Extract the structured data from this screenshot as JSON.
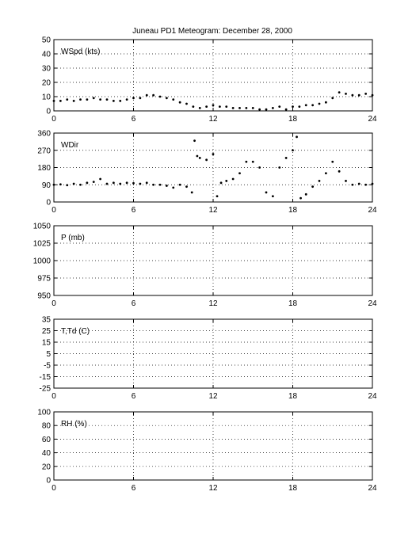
{
  "title": "Juneau PD1 Meteogram:   December 28, 2000",
  "chart_data": [
    {
      "type": "scatter",
      "label": "WSpd (kts)",
      "xlim": [
        0,
        24
      ],
      "ylim": [
        0,
        50
      ],
      "xticks": [
        0,
        6,
        12,
        18,
        24
      ],
      "yticks": [
        0,
        10,
        20,
        30,
        40,
        50
      ],
      "grid": true,
      "series": [
        {
          "x": [
            0,
            0.5,
            1,
            1.5,
            2,
            2.5,
            3,
            3.5,
            4,
            4.5,
            5,
            5.5,
            6,
            6.5,
            7,
            7.5,
            8,
            8.5,
            9,
            9.5,
            10,
            10.5,
            11,
            11.5,
            12,
            12.5,
            13,
            13.5,
            14,
            14.5,
            15,
            15.5,
            16,
            16.5,
            17,
            17.5,
            18,
            18.5,
            19,
            19.5,
            20,
            20.5,
            21,
            21.5,
            22,
            22.5,
            23,
            23.5,
            24
          ],
          "y": [
            7,
            7,
            8,
            7,
            8,
            8,
            9,
            8,
            8,
            7,
            7,
            8,
            9,
            9,
            11,
            11,
            10,
            9,
            8,
            6,
            5,
            3,
            2,
            3,
            4,
            3,
            3,
            2,
            2,
            2,
            2,
            1,
            1,
            2,
            3,
            1,
            3,
            3,
            4,
            4,
            5,
            6,
            9,
            13,
            12,
            11,
            11,
            12,
            11
          ]
        }
      ]
    },
    {
      "type": "scatter",
      "label": "WDir",
      "xlim": [
        0,
        24
      ],
      "ylim": [
        0,
        360
      ],
      "xticks": [
        0,
        6,
        12,
        18,
        24
      ],
      "yticks": [
        0,
        90,
        180,
        270,
        360
      ],
      "grid": true,
      "series": [
        {
          "x": [
            0,
            0.5,
            1,
            1.5,
            2,
            2.5,
            3,
            3.5,
            4,
            4.5,
            5,
            5.5,
            6,
            6.5,
            7,
            7.5,
            8,
            8.5,
            9,
            9.5,
            10,
            10.4,
            10.6,
            10.8,
            11,
            11.5,
            12,
            12.3,
            12.6,
            13,
            13.5,
            14,
            14.5,
            15,
            15.5,
            16,
            16.5,
            17,
            17.5,
            18,
            18.3,
            18.6,
            19,
            19.5,
            20,
            20.5,
            21,
            21.5,
            22,
            22.5,
            23,
            23.5,
            24
          ],
          "y": [
            90,
            92,
            88,
            95,
            90,
            100,
            105,
            120,
            95,
            100,
            95,
            100,
            98,
            95,
            100,
            90,
            90,
            85,
            75,
            90,
            80,
            50,
            320,
            240,
            230,
            220,
            250,
            30,
            100,
            110,
            120,
            150,
            210,
            210,
            180,
            50,
            30,
            180,
            230,
            270,
            340,
            20,
            40,
            80,
            110,
            150,
            210,
            160,
            110,
            90,
            95,
            90,
            95
          ]
        }
      ]
    },
    {
      "type": "scatter",
      "label": "P (mb)",
      "xlim": [
        0,
        24
      ],
      "ylim": [
        950,
        1050
      ],
      "xticks": [
        0,
        6,
        12,
        18,
        24
      ],
      "yticks": [
        950,
        975,
        1000,
        1025,
        1050
      ],
      "grid": true,
      "series": []
    },
    {
      "type": "scatter",
      "label": "T,Td (C)",
      "xlim": [
        0,
        24
      ],
      "ylim": [
        -25,
        35
      ],
      "xticks": [
        0,
        6,
        12,
        18,
        24
      ],
      "yticks": [
        -25,
        -15,
        -5,
        5,
        15,
        25,
        35
      ],
      "grid": true,
      "series": []
    },
    {
      "type": "scatter",
      "label": "RH (%)",
      "xlim": [
        0,
        24
      ],
      "ylim": [
        0,
        100
      ],
      "xticks": [
        0,
        6,
        12,
        18,
        24
      ],
      "yticks": [
        0,
        20,
        40,
        60,
        80,
        100
      ],
      "grid": true,
      "series": []
    }
  ]
}
